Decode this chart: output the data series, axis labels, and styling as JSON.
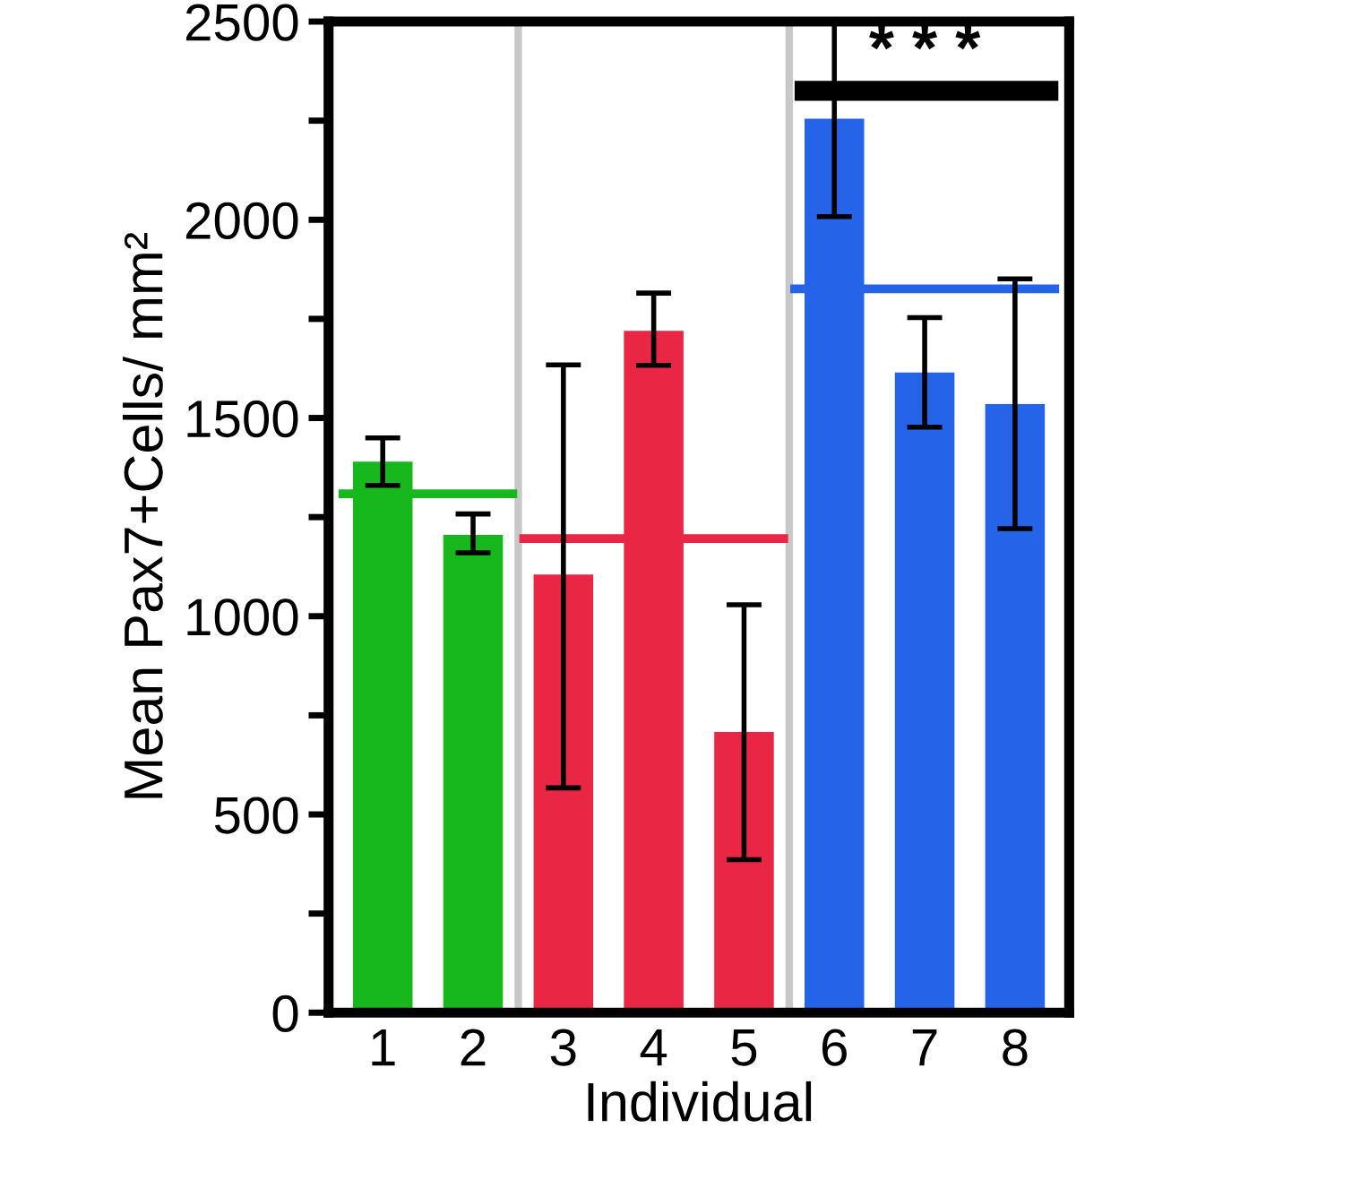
{
  "chart_data": {
    "type": "bar",
    "xlabel": "Individual",
    "ylabel": "Mean Pax7+Cells/ mm²",
    "categories": [
      "1",
      "2",
      "3",
      "4",
      "5",
      "6",
      "7",
      "8"
    ],
    "values": [
      1390,
      1205,
      1105,
      1720,
      708,
      2255,
      1615,
      1535
    ],
    "colors": [
      "#16b81e",
      "#16b81e",
      "#e92644",
      "#e92644",
      "#e92644",
      "#2563e9",
      "#2563e9",
      "#2563e9"
    ],
    "errors": [
      [
        1330,
        1450
      ],
      [
        1160,
        1258
      ],
      [
        567,
        1634
      ],
      [
        1633,
        1815
      ],
      [
        386,
        1029
      ],
      [
        2008,
        2500
      ],
      [
        1477,
        1753
      ],
      [
        1221,
        1851
      ]
    ],
    "ref_lines": [
      {
        "axis": "y",
        "value": 1309,
        "color": "#16b81e"
      },
      {
        "axis": "y",
        "value": 1196,
        "color": "#e92644"
      },
      {
        "axis": "y",
        "value": 1826,
        "color": "#2563e9"
      }
    ],
    "annotations": [
      "* * *"
    ],
    "ylim": [
      0,
      2500
    ],
    "yticks": [
      0,
      {
        "value": 250,
        "label": null
      },
      500,
      {
        "value": 750,
        "label": null
      },
      1000,
      {
        "value": 1250,
        "label": null
      },
      1500,
      {
        "value": 1750,
        "label": null
      },
      2000,
      {
        "value": 2250,
        "label": null
      },
      2500
    ],
    "grid": false,
    "legend": false
  }
}
